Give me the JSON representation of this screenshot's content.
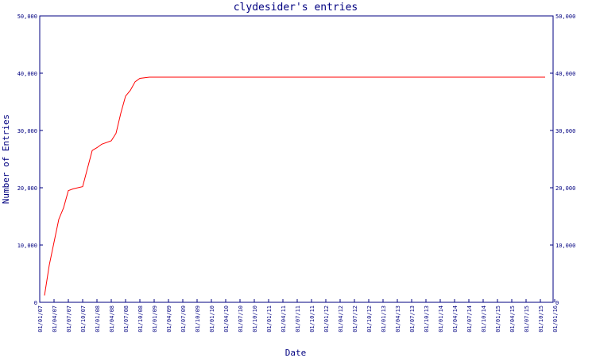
{
  "chart_data": {
    "type": "line",
    "title": "clydesider's entries",
    "xlabel": "Date",
    "ylabel": "Number of Entries",
    "ylim": [
      0,
      50000
    ],
    "grid": false,
    "colors": {
      "axis": "#000080",
      "line": "#ff0000",
      "background": "#ffffff"
    },
    "y_ticks": [
      {
        "value": 0,
        "label": "0"
      },
      {
        "value": 10000,
        "label": "10,000"
      },
      {
        "value": 20000,
        "label": "20,000"
      },
      {
        "value": 30000,
        "label": "30,000"
      },
      {
        "value": 40000,
        "label": "40,000"
      },
      {
        "value": 50000,
        "label": "50,000"
      }
    ],
    "x_ticks": [
      "01/01/07",
      "01/04/07",
      "01/07/07",
      "01/10/07",
      "01/01/08",
      "01/04/08",
      "01/07/08",
      "01/10/08",
      "01/01/09",
      "01/04/09",
      "01/07/09",
      "01/10/09",
      "01/01/10",
      "01/04/10",
      "01/07/10",
      "01/10/10",
      "01/01/11",
      "01/04/11",
      "01/07/11",
      "01/10/11",
      "01/01/12",
      "01/04/12",
      "01/07/12",
      "01/10/12",
      "01/01/13",
      "01/04/13",
      "01/07/13",
      "01/10/13",
      "01/01/14",
      "01/04/14",
      "01/07/14",
      "01/10/14",
      "01/01/15",
      "01/04/15",
      "01/07/15",
      "01/10/15",
      "01/01/16"
    ],
    "series": [
      {
        "values": [
          {
            "x": "01/02/07",
            "y": 1200
          },
          {
            "x": "01/03/07",
            "y": 6500
          },
          {
            "x": "01/04/07",
            "y": 10500
          },
          {
            "x": "01/05/07",
            "y": 14500
          },
          {
            "x": "01/06/07",
            "y": 16500
          },
          {
            "x": "01/07/07",
            "y": 19500
          },
          {
            "x": "01/08/07",
            "y": 19800
          },
          {
            "x": "01/10/07",
            "y": 20200
          },
          {
            "x": "01/12/07",
            "y": 26500
          },
          {
            "x": "01/01/08",
            "y": 27000
          },
          {
            "x": "01/02/08",
            "y": 27600
          },
          {
            "x": "01/04/08",
            "y": 28200
          },
          {
            "x": "01/05/08",
            "y": 29500
          },
          {
            "x": "01/06/08",
            "y": 33000
          },
          {
            "x": "01/07/08",
            "y": 36000
          },
          {
            "x": "01/08/08",
            "y": 37000
          },
          {
            "x": "01/09/08",
            "y": 38500
          },
          {
            "x": "01/10/08",
            "y": 39100
          },
          {
            "x": "01/12/08",
            "y": 39300
          },
          {
            "x": "01/11/15",
            "y": 39300
          }
        ]
      }
    ]
  }
}
